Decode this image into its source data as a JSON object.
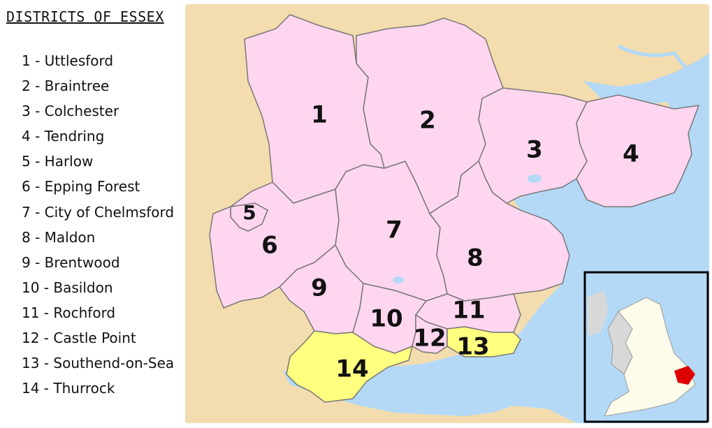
{
  "title": "DISTRICTS OF ESSEX",
  "districts": [
    {
      "num": "1",
      "label": "1 - Uttlesford",
      "fill": "#ffd6f0"
    },
    {
      "num": "2",
      "label": "2 - Braintree",
      "fill": "#ffd6f0"
    },
    {
      "num": "3",
      "label": "3 - Colchester",
      "fill": "#ffd6f0"
    },
    {
      "num": "4",
      "label": "4 - Tendring",
      "fill": "#ffd6f0"
    },
    {
      "num": "5",
      "label": "5 - Harlow",
      "fill": "#ffd6f0"
    },
    {
      "num": "6",
      "label": "6 - Epping Forest",
      "fill": "#ffd6f0"
    },
    {
      "num": "7",
      "label": "7 - City of Chelmsford",
      "fill": "#ffd6f0"
    },
    {
      "num": "8",
      "label": "8 - Maldon",
      "fill": "#ffd6f0"
    },
    {
      "num": "9",
      "label": "9 - Brentwood",
      "fill": "#ffd6f0"
    },
    {
      "num": "10",
      "label": "10 - Basildon",
      "fill": "#ffd6f0"
    },
    {
      "num": "11",
      "label": "11 - Rochford",
      "fill": "#ffd6f0"
    },
    {
      "num": "12",
      "label": "12 - Castle Point",
      "fill": "#ffd6f0"
    },
    {
      "num": "13",
      "label": "13 - Southend-on-Sea",
      "fill": "#ffff80"
    },
    {
      "num": "14",
      "label": "14 - Thurrock",
      "fill": "#ffff80"
    }
  ],
  "colors": {
    "land": "#f3dcae",
    "sea": "#b3d9f7",
    "district": "#ffd6f0",
    "unitary": "#ffff80",
    "border": "#777777",
    "inset_frame": "#000000",
    "inset_england": "#fdfbea",
    "inset_land_other": "#d8d8d8",
    "inset_highlight": "#dd0000"
  }
}
